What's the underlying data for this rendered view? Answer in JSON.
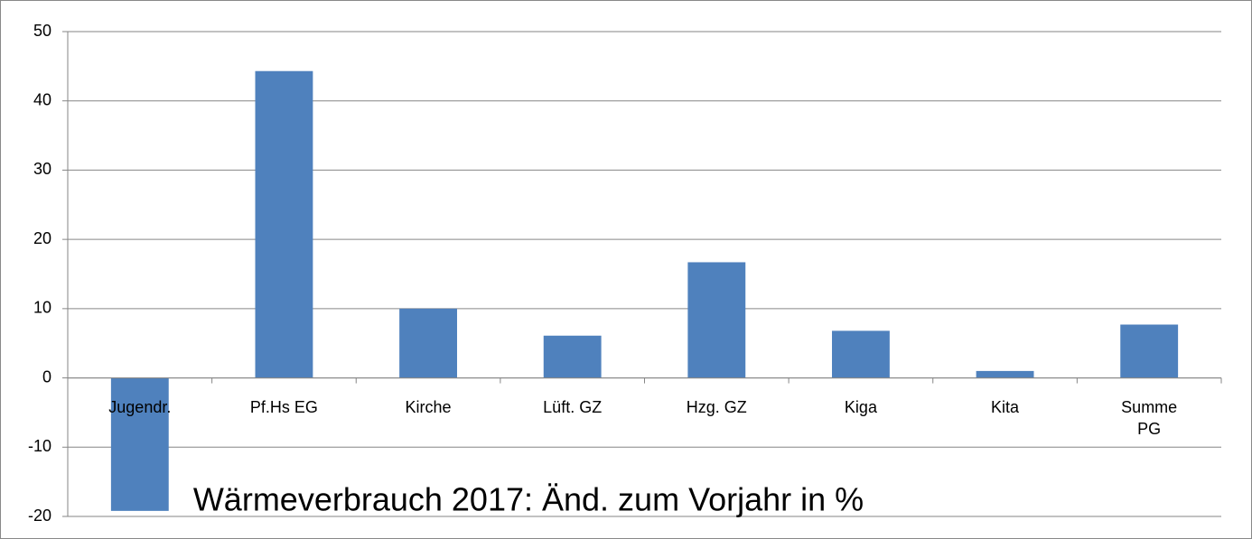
{
  "chart_data": {
    "type": "bar",
    "title": "Wärmeverbrauch 2017:  Änd. zum Vorjahr in %",
    "categories": [
      "Jugendr.",
      "Pf.Hs EG",
      "Kirche",
      "Lüft. GZ",
      "Hzg. GZ",
      "Kiga",
      "Kita",
      "Summe PG"
    ],
    "values": [
      -19.2,
      44.3,
      10.0,
      6.1,
      16.7,
      6.8,
      1.0,
      7.7
    ],
    "color": "#4f81bd",
    "ylim": [
      -20,
      50
    ],
    "yticks": [
      -20,
      -10,
      0,
      10,
      20,
      30,
      40,
      50
    ],
    "grid": true
  }
}
